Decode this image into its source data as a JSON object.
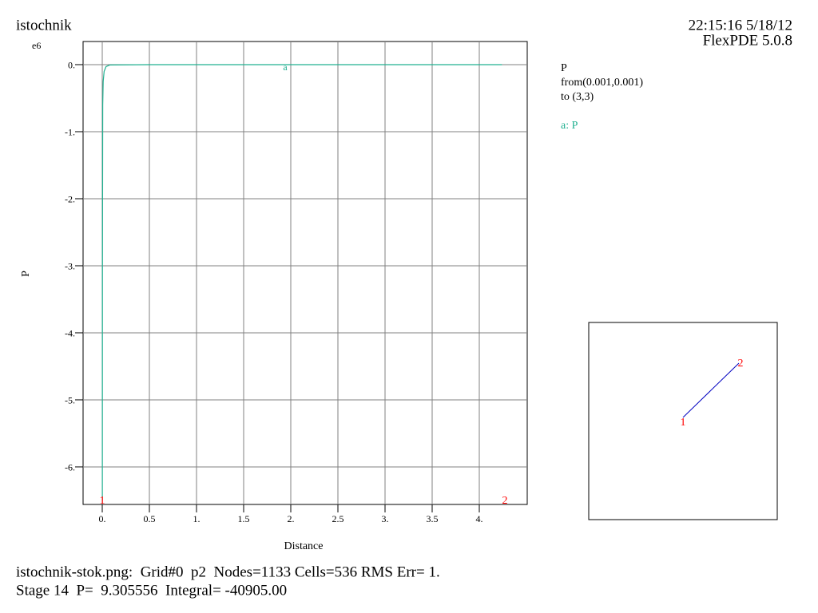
{
  "chart_data": {
    "type": "line",
    "title": "istochnik",
    "timestamp": "22:15:16 5/18/12",
    "software": "FlexPDE 5.0.8",
    "y_multiplier": "e6",
    "ylabel": "P",
    "xlabel": "Distance",
    "plot_variable": "P",
    "from_text": "from(0.001,0.001)",
    "to_text": "to (3,3)",
    "curve_label": "a",
    "path_labels": [
      "1",
      "2"
    ],
    "x": [
      0.001,
      0.002,
      0.005,
      0.01,
      0.02,
      0.04,
      0.08,
      0.5,
      1,
      2,
      3,
      4.24
    ],
    "series": [
      {
        "name": "a: P",
        "color": "#20b090",
        "values": [
          -6.5,
          -3.15,
          -0.6,
          -0.25,
          -0.1,
          -0.03,
          -0.005,
          0,
          0,
          0,
          0,
          0
        ]
      }
    ],
    "xlim": [
      -0.2034,
      4.5085
    ],
    "ylim": [
      -6.56,
      0.345
    ],
    "xticks": [
      {
        "value": 0,
        "label": "0."
      },
      0.5,
      {
        "value": 1,
        "label": "1."
      },
      1.5,
      {
        "value": 2,
        "label": "2."
      },
      2.5,
      {
        "value": 3,
        "label": "3."
      },
      3.5,
      {
        "value": 4,
        "label": "4."
      }
    ],
    "yticks": [
      {
        "value": 0,
        "label": "0."
      },
      {
        "value": -1,
        "label": "-1."
      },
      {
        "value": -2,
        "label": "-2."
      },
      {
        "value": -3,
        "label": "-3."
      },
      {
        "value": -4,
        "label": "-4."
      },
      {
        "value": -5,
        "label": "-5."
      },
      {
        "value": -6,
        "label": "-6."
      }
    ],
    "grid": true,
    "footer": [
      "istochnik-stok.png:  Grid#0  p2  Nodes=1133 Cells=536 RMS Err= 1.",
      "Stage 14  P=  9.305556  Integral= -40905.00"
    ]
  }
}
